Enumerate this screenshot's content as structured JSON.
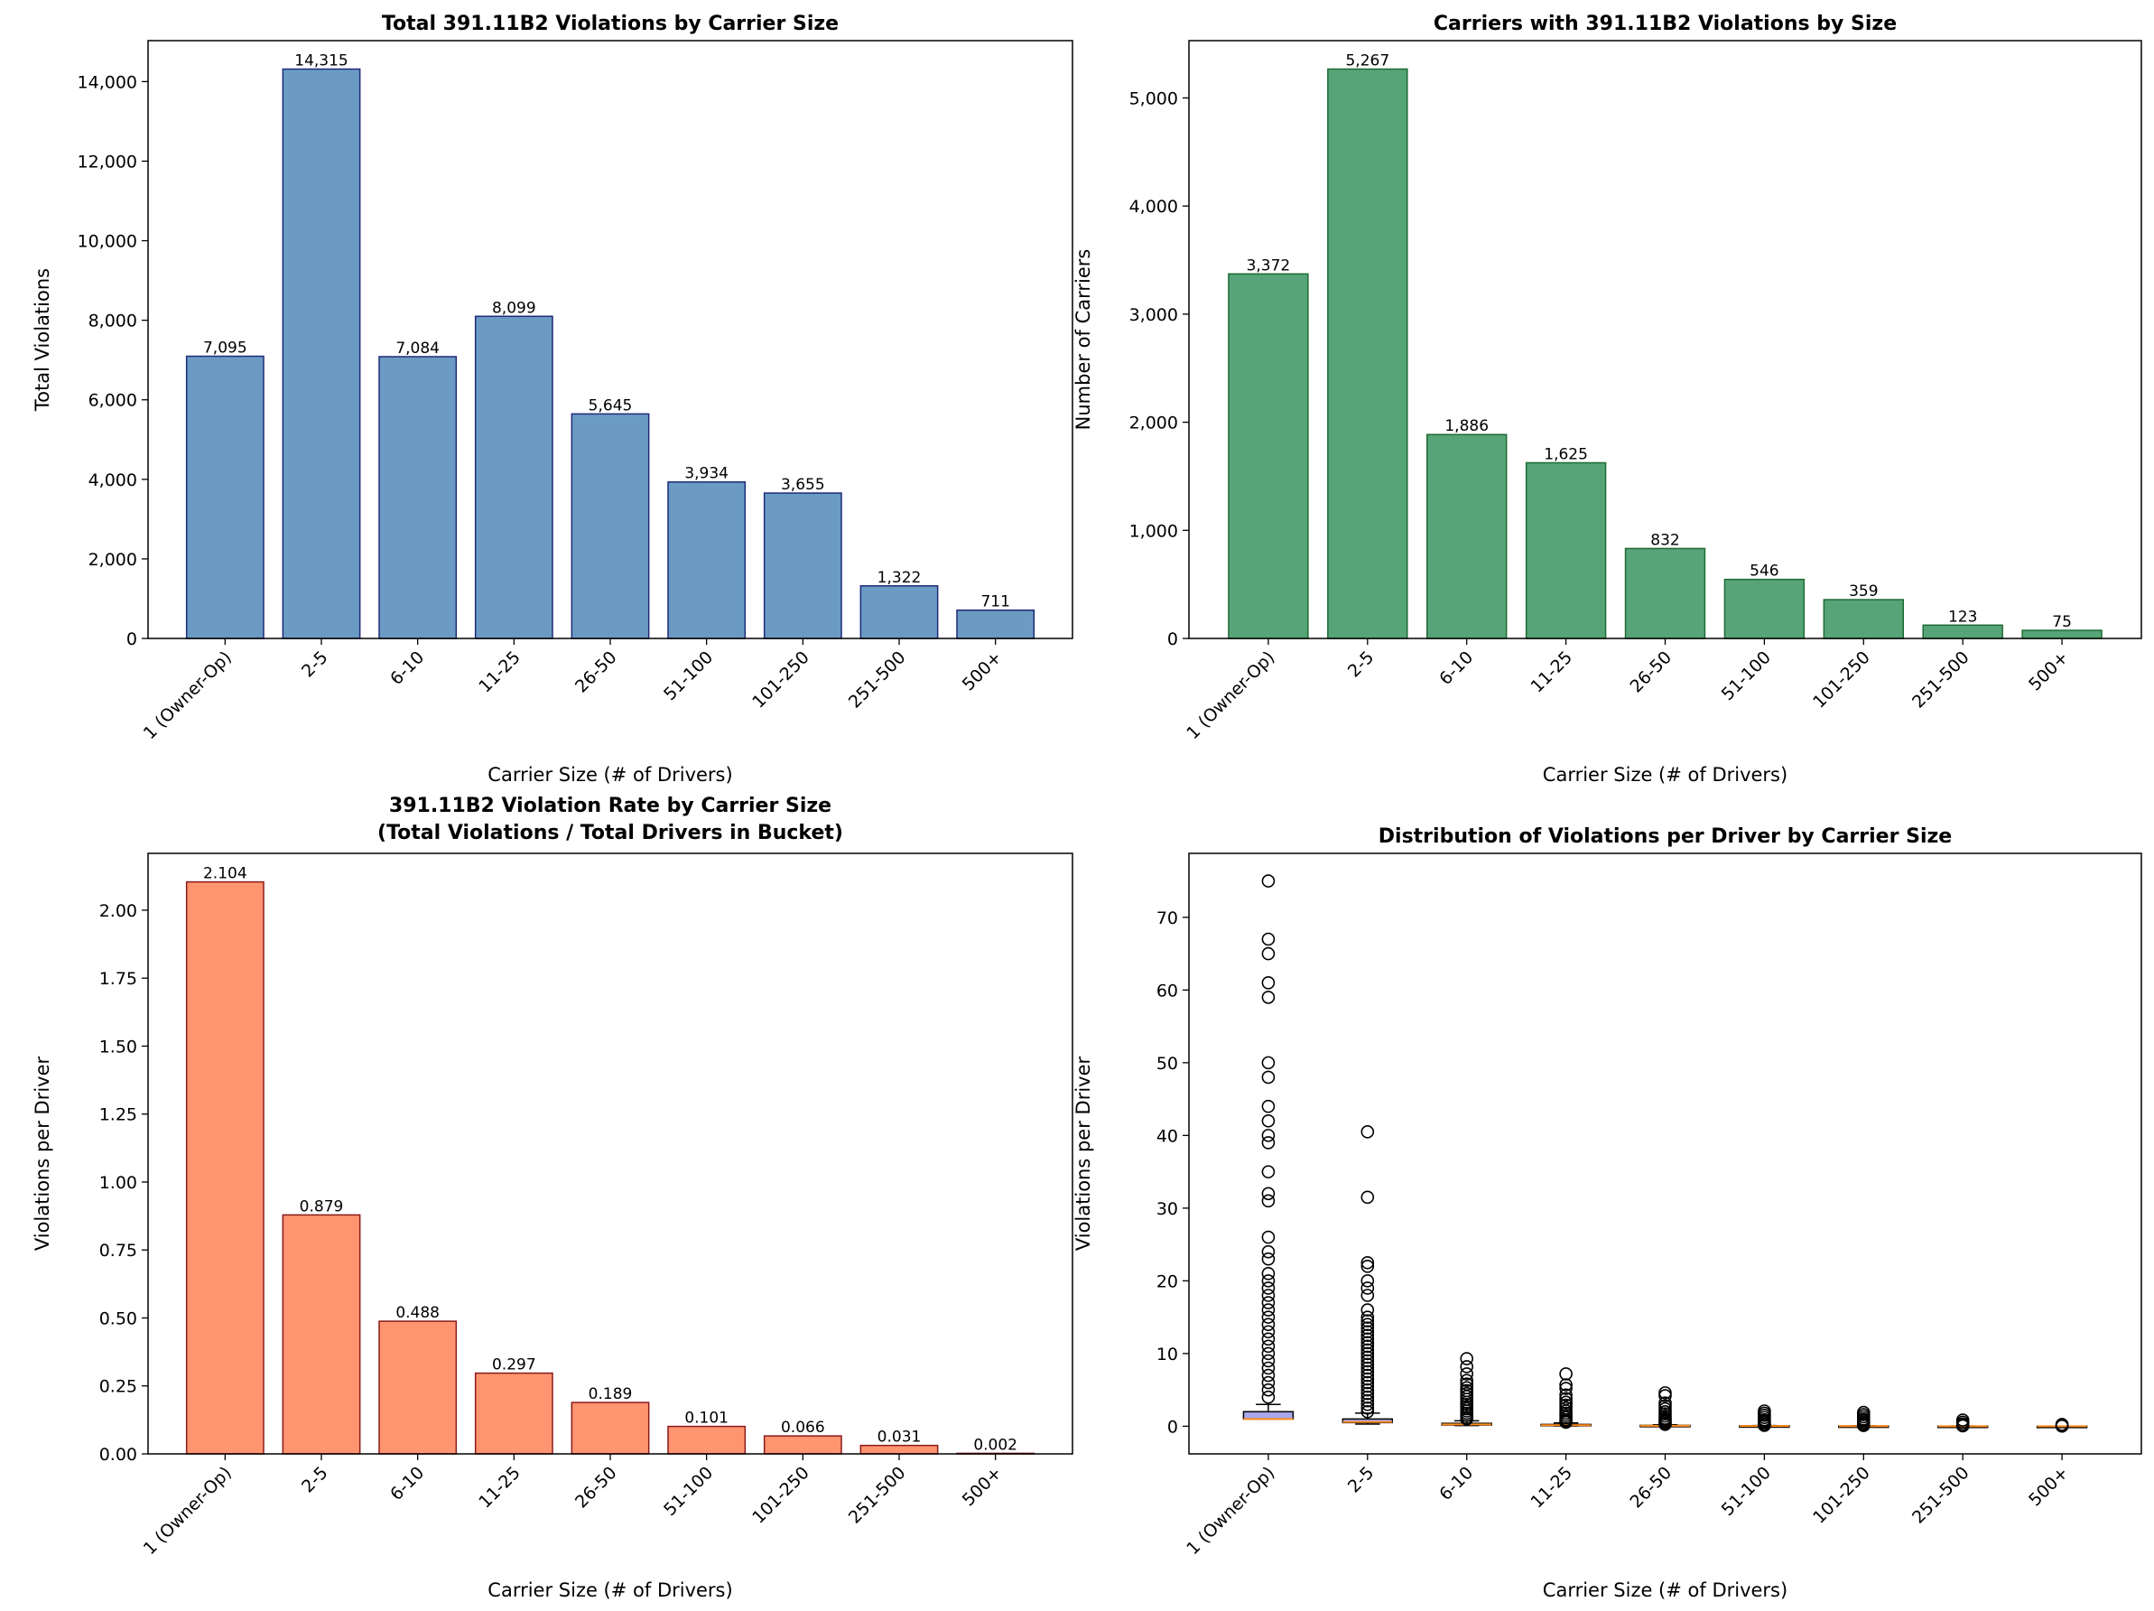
{
  "chart_data": [
    {
      "type": "bar",
      "title": "Total 391.11B2 Violations by Carrier Size",
      "xlabel": "Carrier Size (# of Drivers)",
      "ylabel": "Total Violations",
      "categories": [
        "1 (Owner-Op)",
        "2-5",
        "6-10",
        "11-25",
        "26-50",
        "51-100",
        "101-250",
        "251-500",
        "500+"
      ],
      "values": [
        7095,
        14315,
        7084,
        8099,
        5645,
        3934,
        3655,
        1322,
        711
      ],
      "value_labels": [
        "7,095",
        "14,315",
        "7,084",
        "8,099",
        "5,645",
        "3,934",
        "3,655",
        "1,322",
        "711"
      ],
      "ylim": [
        0,
        15030
      ],
      "yticks": [
        0,
        2000,
        4000,
        6000,
        8000,
        10000,
        12000,
        14000
      ],
      "ytick_labels": [
        "0",
        "2,000",
        "4,000",
        "6,000",
        "8,000",
        "10,000",
        "12,000",
        "14,000"
      ],
      "bar_color": "#6b9bc3",
      "edge_color": "#1f2a7a"
    },
    {
      "type": "bar",
      "title": "Carriers with 391.11B2 Violations by Size",
      "xlabel": "Carrier Size (# of Drivers)",
      "ylabel": "Number of Carriers",
      "categories": [
        "1 (Owner-Op)",
        "2-5",
        "6-10",
        "11-25",
        "26-50",
        "51-100",
        "101-250",
        "251-500",
        "500+"
      ],
      "values": [
        3372,
        5267,
        1886,
        1625,
        832,
        546,
        359,
        123,
        75
      ],
      "value_labels": [
        "3,372",
        "5,267",
        "1,886",
        "1,625",
        "832",
        "546",
        "359",
        "123",
        "75"
      ],
      "ylim": [
        0,
        5530
      ],
      "yticks": [
        0,
        1000,
        2000,
        3000,
        4000,
        5000
      ],
      "ytick_labels": [
        "0",
        "1,000",
        "2,000",
        "3,000",
        "4,000",
        "5,000"
      ],
      "bar_color": "#56a478",
      "edge_color": "#1e6b32"
    },
    {
      "type": "bar",
      "title": "391.11B2 Violation Rate by Carrier Size\n(Total Violations / Total Drivers in Bucket)",
      "xlabel": "Carrier Size (# of Drivers)",
      "ylabel": "Violations per Driver",
      "categories": [
        "1 (Owner-Op)",
        "2-5",
        "6-10",
        "11-25",
        "26-50",
        "51-100",
        "101-250",
        "251-500",
        "500+"
      ],
      "values": [
        2.104,
        0.879,
        0.488,
        0.297,
        0.189,
        0.101,
        0.066,
        0.031,
        0.002
      ],
      "value_labels": [
        "2.104",
        "0.879",
        "0.488",
        "0.297",
        "0.189",
        "0.101",
        "0.066",
        "0.031",
        "0.002"
      ],
      "ylim": [
        0,
        2.209
      ],
      "yticks": [
        0,
        0.25,
        0.5,
        0.75,
        1.0,
        1.25,
        1.5,
        1.75,
        2.0
      ],
      "ytick_labels": [
        "0.00",
        "0.25",
        "0.50",
        "0.75",
        "1.00",
        "1.25",
        "1.50",
        "1.75",
        "2.00"
      ],
      "bar_color": "#ff9570",
      "edge_color": "#8b1a1a"
    },
    {
      "type": "box",
      "title": "Distribution of Violations per Driver by Carrier Size",
      "xlabel": "Carrier Size (# of Drivers)",
      "ylabel": "Violations per Driver",
      "categories": [
        "1 (Owner-Op)",
        "2-5",
        "6-10",
        "11-25",
        "26-50",
        "51-100",
        "101-250",
        "251-500",
        "500+"
      ],
      "ylim": [
        -3.8,
        78.8
      ],
      "yticks": [
        0,
        10,
        20,
        30,
        40,
        50,
        60,
        70
      ],
      "ytick_labels": [
        "0",
        "10",
        "20",
        "30",
        "40",
        "50",
        "60",
        "70"
      ],
      "box_color": "#a9a7ee",
      "median_color": "#ff8c1a",
      "boxes": [
        {
          "q1": 1.0,
          "median": 1.0,
          "q3": 2.0,
          "whisker_low": 1.0,
          "whisker_high": 3.0,
          "outliers": [
            75,
            67,
            65,
            61,
            59,
            50,
            48,
            44,
            42,
            40,
            39,
            35,
            32,
            31,
            26,
            24,
            23,
            21,
            20,
            19,
            18,
            17,
            16,
            15,
            14,
            13,
            12,
            11,
            10,
            9,
            8,
            7,
            6,
            5,
            4
          ]
        },
        {
          "q1": 0.5,
          "median": 0.6,
          "q3": 1.0,
          "whisker_low": 0.3,
          "whisker_high": 1.8,
          "outliers": [
            40.5,
            31.5,
            22.5,
            22,
            20,
            19,
            18,
            16,
            15,
            14.5,
            14,
            13.5,
            13,
            12.5,
            12,
            11.5,
            11,
            10.5,
            10,
            9.5,
            9,
            8.5,
            8,
            7.5,
            7,
            6.5,
            6,
            5.5,
            5,
            4.5,
            4,
            3.5,
            3,
            2.5,
            2
          ]
        },
        {
          "q1": 0.17,
          "median": 0.25,
          "q3": 0.4,
          "whisker_low": 0.1,
          "whisker_high": 0.75,
          "outliers": [
            9.3,
            8.2,
            7.2,
            6.3,
            5.8,
            5.3,
            4.9,
            4.5,
            4.1,
            3.7,
            3.3,
            3.0,
            2.7,
            2.4,
            2.1,
            1.8,
            1.5,
            1.2,
            1.0
          ]
        },
        {
          "q1": 0.1,
          "median": 0.15,
          "q3": 0.25,
          "whisker_low": 0.04,
          "whisker_high": 0.45,
          "outliers": [
            7.2,
            5.7,
            5.2,
            4.3,
            3.8,
            3.3,
            2.9,
            2.5,
            2.1,
            1.8,
            1.5,
            1.2,
            0.9,
            0.7,
            0.55
          ]
        },
        {
          "q1": 0.04,
          "median": 0.06,
          "q3": 0.12,
          "whisker_low": 0.02,
          "whisker_high": 0.2,
          "outliers": [
            4.6,
            4.2,
            3.2,
            2.8,
            2.4,
            2.0,
            1.7,
            1.4,
            1.1,
            0.9,
            0.7,
            0.5,
            0.35,
            0.25
          ]
        },
        {
          "q1": 0.02,
          "median": 0.03,
          "q3": 0.06,
          "whisker_low": 0.01,
          "whisker_high": 0.1,
          "outliers": [
            2.1,
            1.8,
            1.5,
            1.2,
            0.9,
            0.7,
            0.5,
            0.3,
            0.2,
            0.12
          ]
        },
        {
          "q1": 0.01,
          "median": 0.02,
          "q3": 0.04,
          "whisker_low": 0.005,
          "whisker_high": 0.06,
          "outliers": [
            1.9,
            1.6,
            1.3,
            1.0,
            0.8,
            0.6,
            0.4,
            0.25,
            0.1
          ]
        },
        {
          "q1": 0.005,
          "median": 0.01,
          "q3": 0.02,
          "whisker_low": 0.002,
          "whisker_high": 0.03,
          "outliers": [
            0.85,
            0.55,
            0.3,
            0.1,
            0.05
          ]
        },
        {
          "q1": 0.0,
          "median": 0.001,
          "q3": 0.003,
          "whisker_low": 0.0,
          "whisker_high": 0.005,
          "outliers": [
            0.25,
            0.1,
            0.02
          ]
        }
      ]
    }
  ]
}
